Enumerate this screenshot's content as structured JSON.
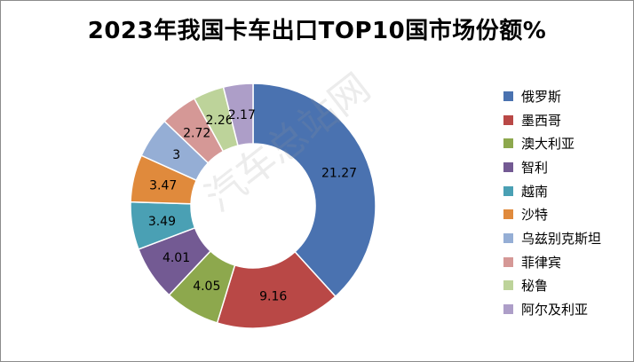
{
  "chart_data": {
    "type": "pie",
    "donut": true,
    "title": "2023年我国卡车出口TOP10国市场份额%",
    "legend_position": "right",
    "categories": [
      "俄罗斯",
      "墨西哥",
      "澳大利亚",
      "智利",
      "越南",
      "沙特",
      "乌兹别克斯坦",
      "菲律宾",
      "秘鲁",
      "阿尔及利亚"
    ],
    "values": [
      21.27,
      9.16,
      4.05,
      4.01,
      3.49,
      3.47,
      3,
      2.72,
      2.26,
      2.17
    ],
    "value_labels": [
      "21.27",
      "9.16",
      "4.05",
      "4.01",
      "3.49",
      "3.47",
      "3",
      "2.72",
      "2.26",
      "2.17"
    ],
    "colors": [
      "#4a72b0",
      "#b94846",
      "#8da84d",
      "#735a93",
      "#4aa0b4",
      "#e08a3c",
      "#95aed5",
      "#d59896",
      "#bdd39a",
      "#ad9ec8"
    ]
  },
  "watermark": "汽车总站网"
}
